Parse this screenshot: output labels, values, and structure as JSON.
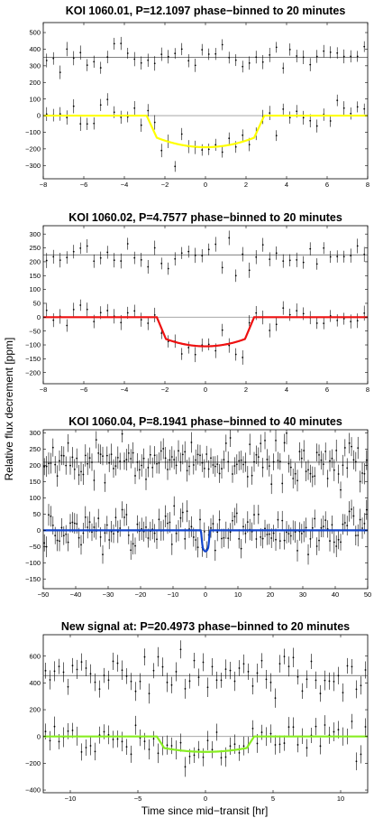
{
  "figure": {
    "ylabel": "Relative flux decrement [ppm]",
    "xlabel": "Time since mid−transit [hr]"
  },
  "chart_data": [
    {
      "type": "scatter",
      "title": "KOI 1060.01, P=12.1097 phase−binned to 20 minutes",
      "xlim": [
        -8,
        8
      ],
      "ylim": [
        -380,
        560
      ],
      "xticks": [
        -8,
        -6,
        -4,
        -2,
        0,
        2,
        4,
        6,
        8
      ],
      "yticks": [
        -300,
        -200,
        -100,
        0,
        100,
        200,
        300,
        400,
        500
      ],
      "grid": false,
      "model_color": "#ffff00",
      "baseline_offset": 350,
      "transit": {
        "depth": 190,
        "half_duration": 2.9,
        "ingress": 0.5,
        "limb_curvature": 0.3
      },
      "bin_width_hr": 0.3333,
      "scatter_ppm": 42,
      "errorbar_ppm": 38
    },
    {
      "type": "scatter",
      "title": "KOI 1060.02, P=4.7577 phase−binned to 20 minutes",
      "xlim": [
        -8,
        8
      ],
      "ylim": [
        -240,
        330
      ],
      "xticks": [
        -8,
        -6,
        -4,
        -2,
        0,
        2,
        4,
        6,
        8
      ],
      "yticks": [
        -200,
        -150,
        -100,
        -50,
        0,
        50,
        100,
        150,
        200,
        250,
        300
      ],
      "grid": false,
      "model_color": "#ee1111",
      "baseline_offset": 225,
      "transit": {
        "depth": 105,
        "half_duration": 2.4,
        "ingress": 0.45,
        "limb_curvature": 0.25
      },
      "bin_width_hr": 0.3333,
      "scatter_ppm": 25,
      "errorbar_ppm": 24
    },
    {
      "type": "scatter",
      "title": "KOI 1060.04, P=8.1941 phase−binned to 40 minutes",
      "xlim": [
        -50,
        50
      ],
      "ylim": [
        -180,
        310
      ],
      "xticks": [
        -50,
        -40,
        -30,
        -20,
        -10,
        0,
        10,
        20,
        30,
        40,
        50
      ],
      "yticks": [
        -150,
        -100,
        -50,
        0,
        50,
        100,
        150,
        200,
        250,
        300
      ],
      "grid": false,
      "model_color": "#1144cc",
      "baseline_offset": 210,
      "transit": {
        "depth": 65,
        "half_duration": 1.4,
        "ingress": 0.5,
        "limb_curvature": 0.2
      },
      "bin_width_hr": 0.6667,
      "scatter_ppm": 34,
      "errorbar_ppm": 30
    },
    {
      "type": "scatter",
      "title": "New signal at: P=20.4973 phase−binned to 20 minutes",
      "xlim": [
        -12,
        12
      ],
      "ylim": [
        -420,
        760
      ],
      "xticks": [
        -10,
        -5,
        0,
        5,
        10
      ],
      "yticks": [
        -400,
        -200,
        0,
        200,
        400,
        600
      ],
      "grid": false,
      "model_color": "#88ee22",
      "baseline_offset": 455,
      "transit": {
        "depth": 115,
        "half_duration": 3.6,
        "ingress": 0.55,
        "limb_curvature": 0.25
      },
      "bin_width_hr": 0.3333,
      "scatter_ppm": 70,
      "errorbar_ppm": 65
    }
  ]
}
